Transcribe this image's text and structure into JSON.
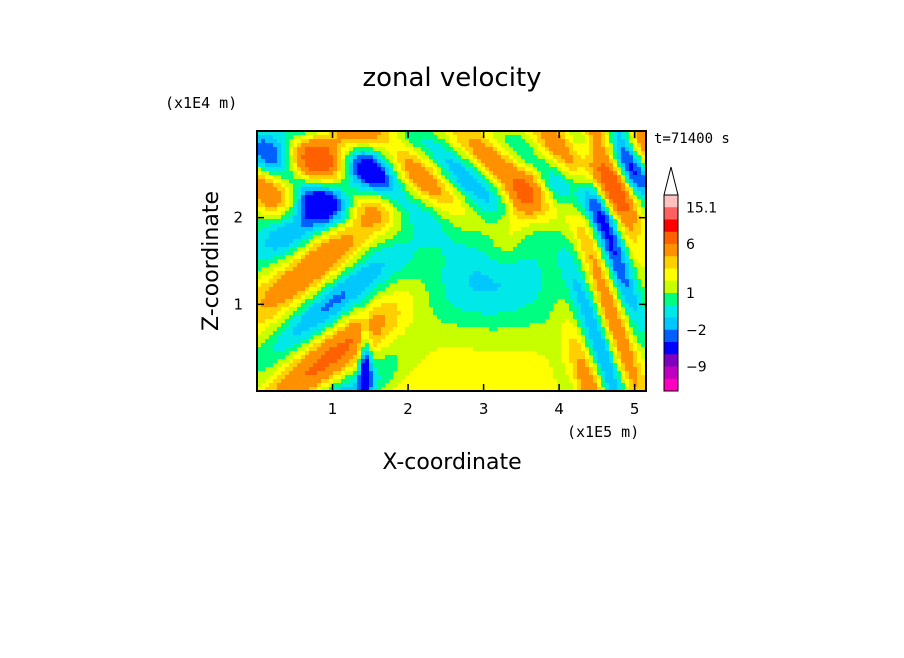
{
  "chart_data": {
    "type": "heatmap",
    "title": "zonal velocity",
    "xlabel": "X-coordinate",
    "ylabel": "Z-coordinate",
    "x_unit": "(x1E5 m)",
    "y_unit": "(x1E4 m)",
    "time_label": "t=71400 s",
    "xlim": [
      0.0,
      5.15
    ],
    "ylim": [
      0.0,
      3.0
    ],
    "x_ticks": [
      1,
      2,
      3,
      4,
      5
    ],
    "y_ticks": [
      1,
      2
    ],
    "colorbar": {
      "levels": [
        {
          "lo": -15,
          "hi": -12,
          "color": "#ff00c0"
        },
        {
          "lo": -12,
          "hi": -9,
          "color": "#c000c0"
        },
        {
          "lo": -9,
          "hi": -6,
          "color": "#8000c0"
        },
        {
          "lo": -6,
          "hi": -3,
          "color": "#0000ff"
        },
        {
          "lo": -3,
          "hi": -2,
          "color": "#0060ff"
        },
        {
          "lo": -2,
          "hi": -1,
          "color": "#00c8ff"
        },
        {
          "lo": -1,
          "hi": 0,
          "color": "#00e8e8"
        },
        {
          "lo": 0,
          "hi": 1,
          "color": "#00ff80"
        },
        {
          "lo": 1,
          "hi": 2,
          "color": "#c8ff00"
        },
        {
          "lo": 2,
          "hi": 3,
          "color": "#ffff00"
        },
        {
          "lo": 3,
          "hi": 4,
          "color": "#ffd000"
        },
        {
          "lo": 4,
          "hi": 6,
          "color": "#ff9000"
        },
        {
          "lo": 6,
          "hi": 9,
          "color": "#ff6000"
        },
        {
          "lo": 9,
          "hi": 12,
          "color": "#ff0000"
        },
        {
          "lo": 12,
          "hi": 15.1,
          "color": "#ff6060"
        },
        {
          "lo": 15.1,
          "hi": 18,
          "color": "#ffc0c0"
        }
      ],
      "tick_labels": [
        {
          "value": 15.1,
          "label": "15.1"
        },
        {
          "value": 6,
          "label": "6"
        },
        {
          "value": 1,
          "label": "1"
        },
        {
          "value": -2,
          "label": "−2"
        },
        {
          "value": -9,
          "label": "−9"
        }
      ],
      "overflow_arrow": "top"
    }
  }
}
